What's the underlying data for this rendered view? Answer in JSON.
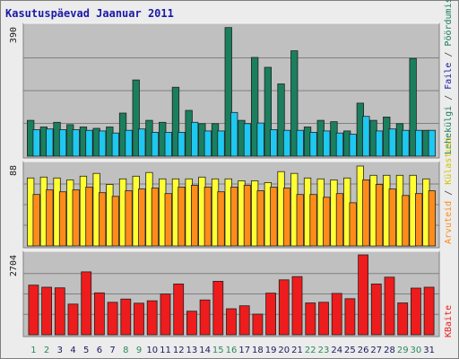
{
  "title": "Kasutuspäevad Jaanuar 2011",
  "colors": {
    "plot_bg": "#c0c0c0",
    "frame_bg": "#ececec",
    "grid": "#808080",
    "pages": "#1a7f5e",
    "files": "#1ec8f0",
    "hits": "#ffff33",
    "visits": "#ff8c1a",
    "kbytes": "#ee1c1c",
    "title": "#1a1aa6",
    "weekday_label": "#1a1a60",
    "weekend_label": "#2a8a5a"
  },
  "right_labels": {
    "visits": "Pöördumisi",
    "separator": " / ",
    "files": "Faile",
    "pages": "Lehekülgi",
    "hits": "Külastusi",
    "prefix_hits": "Arvuteid",
    "kbytes": "KBaite"
  },
  "chart_data": [
    {
      "type": "bar",
      "title": "",
      "y_max_label": "390",
      "ylim": [
        0,
        390
      ],
      "categories": [
        "1",
        "2",
        "3",
        "4",
        "5",
        "6",
        "7",
        "8",
        "9",
        "10",
        "11",
        "12",
        "13",
        "14",
        "15",
        "16",
        "17",
        "18",
        "19",
        "20",
        "21",
        "22",
        "23",
        "24",
        "25",
        "26",
        "27",
        "28",
        "29",
        "30",
        "31"
      ],
      "weekend": [
        1,
        2,
        8,
        9,
        15,
        16,
        22,
        23,
        29,
        30
      ],
      "series": [
        {
          "name": "Lehekülgi",
          "key": "pages",
          "values": [
            108,
            88,
            102,
            95,
            88,
            84,
            88,
            130,
            230,
            108,
            102,
            208,
            138,
            98,
            98,
            388,
            108,
            298,
            268,
            218,
            318,
            88,
            108,
            104,
            76,
            160,
            108,
            118,
            98,
            295,
            78
          ]
        },
        {
          "name": "Faile",
          "key": "files",
          "values": [
            80,
            82,
            80,
            80,
            78,
            76,
            70,
            78,
            82,
            72,
            72,
            72,
            102,
            76,
            76,
            132,
            98,
            100,
            80,
            78,
            78,
            72,
            76,
            70,
            66,
            120,
            76,
            82,
            78,
            78,
            78
          ]
        }
      ]
    },
    {
      "type": "bar",
      "title": "",
      "y_max_label": "88",
      "ylim": [
        0,
        88
      ],
      "categories": [
        "1",
        "2",
        "3",
        "4",
        "5",
        "6",
        "7",
        "8",
        "9",
        "10",
        "11",
        "12",
        "13",
        "14",
        "15",
        "16",
        "17",
        "18",
        "19",
        "20",
        "21",
        "22",
        "23",
        "24",
        "25",
        "26",
        "27",
        "28",
        "29",
        "30",
        "31"
      ],
      "series": [
        {
          "name": "Külastusi",
          "key": "hits",
          "values": [
            74,
            75,
            74,
            72,
            76,
            79,
            67,
            73,
            76,
            80,
            73,
            73,
            73,
            75,
            73,
            73,
            71,
            71,
            69,
            81,
            79,
            74,
            73,
            72,
            74,
            87,
            77,
            77,
            77,
            77,
            73
          ]
        },
        {
          "name": "Arvuteid",
          "key": "visits",
          "values": [
            56,
            61,
            59,
            61,
            64,
            58,
            54,
            60,
            62,
            63,
            57,
            64,
            66,
            64,
            59,
            64,
            66,
            60,
            64,
            63,
            56,
            56,
            53,
            57,
            47,
            72,
            67,
            62,
            55,
            57,
            60
          ]
        }
      ]
    },
    {
      "type": "bar",
      "title": "",
      "y_max_label": "2704",
      "ylim": [
        0,
        2704
      ],
      "categories": [
        "1",
        "2",
        "3",
        "4",
        "5",
        "6",
        "7",
        "8",
        "9",
        "10",
        "11",
        "12",
        "13",
        "14",
        "15",
        "16",
        "17",
        "18",
        "19",
        "20",
        "21",
        "22",
        "23",
        "24",
        "25",
        "26",
        "27",
        "28",
        "29",
        "30",
        "31"
      ],
      "series": [
        {
          "name": "KBaite",
          "key": "kbytes",
          "values": [
            1680,
            1610,
            1590,
            1040,
            2130,
            1420,
            1100,
            1210,
            1070,
            1150,
            1380,
            1720,
            800,
            1180,
            1810,
            880,
            980,
            700,
            1410,
            1860,
            1970,
            1080,
            1100,
            1400,
            1220,
            2704,
            1720,
            1950,
            1080,
            1580,
            1610
          ]
        }
      ]
    }
  ]
}
